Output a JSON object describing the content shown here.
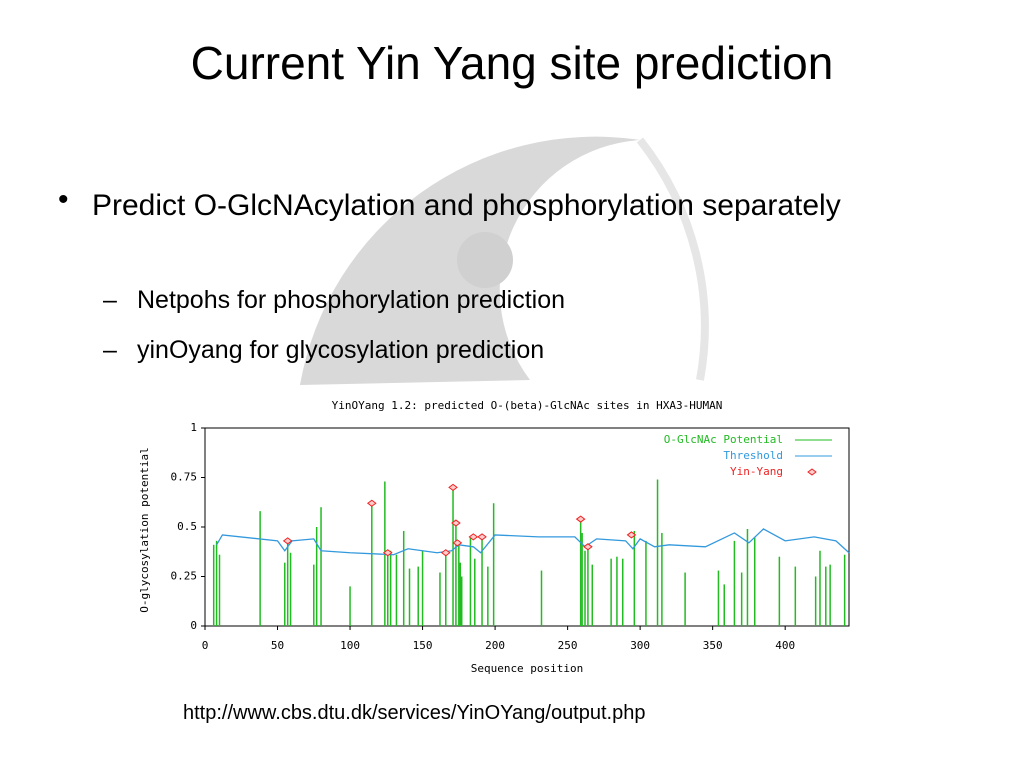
{
  "title": "Current Yin Yang site prediction",
  "bullets": [
    {
      "text": "Predict O-GlcNAcylation and phosphorylation separately",
      "sub": [
        "Netpohs  for phosphorylation prediction",
        "yinOyang for glycosylation prediction"
      ]
    }
  ],
  "url": "http://www.cbs.dtu.dk/services/YinOYang/output.php",
  "chart_data": {
    "type": "line",
    "title": "YinOYang 1.2: predicted O-(beta)-GlcNAc sites in HXA3-HUMAN",
    "xlabel": "Sequence position",
    "ylabel": "O-glycosylation potential",
    "xlim": [
      0,
      444
    ],
    "xticks": [
      0,
      50,
      100,
      150,
      200,
      250,
      300,
      350,
      400
    ],
    "ylim": [
      0,
      1
    ],
    "yticks": [
      0,
      0.25,
      0.5,
      0.75,
      1
    ],
    "legend": "upper right",
    "series": [
      {
        "name": "O-GlcNAc Potential",
        "color": "#22bb22",
        "style": "bar",
        "x": [
          6,
          8,
          10,
          38,
          55,
          57,
          59,
          75,
          77,
          80,
          100,
          115,
          124,
          126,
          128,
          132,
          137,
          141,
          147,
          150,
          162,
          166,
          171,
          173,
          175,
          176,
          177,
          183,
          186,
          191,
          195,
          199,
          232,
          259,
          260,
          262,
          264,
          267,
          280,
          284,
          288,
          296,
          304,
          312,
          315,
          331,
          354,
          358,
          365,
          370,
          374,
          379,
          396,
          407,
          421,
          424,
          428,
          431,
          441
        ],
        "values": [
          0.41,
          0.43,
          0.36,
          0.58,
          0.32,
          0.43,
          0.37,
          0.31,
          0.5,
          0.6,
          0.2,
          0.62,
          0.73,
          0.37,
          0.38,
          0.36,
          0.48,
          0.29,
          0.3,
          0.38,
          0.27,
          0.37,
          0.7,
          0.52,
          0.42,
          0.32,
          0.25,
          0.45,
          0.34,
          0.45,
          0.3,
          0.62,
          0.28,
          0.53,
          0.47,
          0.38,
          0.4,
          0.31,
          0.34,
          0.35,
          0.34,
          0.48,
          0.43,
          0.74,
          0.47,
          0.27,
          0.28,
          0.21,
          0.43,
          0.27,
          0.49,
          0.45,
          0.35,
          0.3,
          0.25,
          0.38,
          0.3,
          0.31,
          0.36
        ]
      },
      {
        "name": "Threshold",
        "color": "#3399dd",
        "style": "line",
        "x": [
          8,
          12,
          50,
          55,
          60,
          75,
          80,
          100,
          130,
          140,
          160,
          170,
          175,
          185,
          190,
          200,
          230,
          255,
          262,
          270,
          290,
          295,
          300,
          310,
          320,
          345,
          365,
          375,
          385,
          400,
          420,
          435,
          444
        ],
        "values": [
          0.41,
          0.46,
          0.43,
          0.38,
          0.43,
          0.44,
          0.38,
          0.37,
          0.36,
          0.39,
          0.37,
          0.38,
          0.41,
          0.4,
          0.37,
          0.46,
          0.45,
          0.45,
          0.4,
          0.44,
          0.43,
          0.39,
          0.44,
          0.4,
          0.41,
          0.4,
          0.47,
          0.42,
          0.49,
          0.43,
          0.45,
          0.43,
          0.37
        ]
      },
      {
        "name": "Yin-Yang",
        "color": "#ee2222",
        "style": "marker",
        "x": [
          57,
          115,
          126,
          166,
          171,
          173,
          174,
          185,
          191,
          259,
          264,
          294
        ],
        "values": [
          0.43,
          0.62,
          0.37,
          0.37,
          0.7,
          0.52,
          0.42,
          0.45,
          0.45,
          0.54,
          0.4,
          0.46
        ]
      }
    ]
  }
}
